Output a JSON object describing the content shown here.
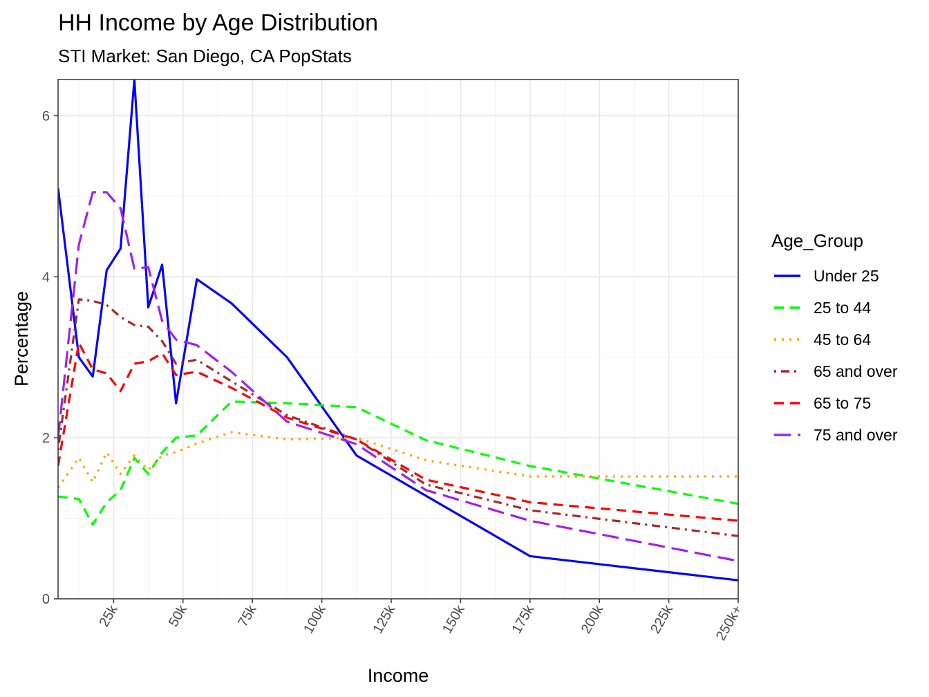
{
  "chart_data": {
    "type": "line",
    "title": "HH Income by Age Distribution",
    "subtitle": "STI Market: San Diego, CA PopStats",
    "x_label": "Income",
    "y_label": "Percentage",
    "legend_title": "Age_Group",
    "legend_position": "right",
    "grid": true,
    "x": [
      5000,
      12500,
      17500,
      22500,
      27500,
      32500,
      37500,
      42500,
      47500,
      55000,
      67500,
      87500,
      112500,
      137500,
      175000,
      250000
    ],
    "xlim": [
      5000,
      250000
    ],
    "xticks": [
      {
        "value": 25000,
        "label": "25k"
      },
      {
        "value": 50000,
        "label": "50k"
      },
      {
        "value": 75000,
        "label": "75k"
      },
      {
        "value": 100000,
        "label": "100k"
      },
      {
        "value": 125000,
        "label": "125k"
      },
      {
        "value": 150000,
        "label": "150k"
      },
      {
        "value": 175000,
        "label": "175k"
      },
      {
        "value": 200000,
        "label": "200k"
      },
      {
        "value": 225000,
        "label": "225k"
      },
      {
        "value": 250000,
        "label": "250k+"
      }
    ],
    "ylim": [
      0,
      6.45
    ],
    "yticks": [
      0,
      2,
      4,
      6
    ],
    "series": [
      {
        "name": "Under 25",
        "color": "#0000ff",
        "linetype": "solid",
        "values": [
          5.1,
          3.0,
          2.76,
          4.08,
          4.35,
          6.45,
          3.62,
          4.15,
          2.43,
          3.97,
          3.67,
          3.0,
          1.78,
          1.28,
          0.53,
          0.23
        ]
      },
      {
        "name": "25 to 44",
        "color": "#00ff00",
        "linetype": "dashed",
        "values": [
          1.27,
          1.24,
          0.92,
          1.2,
          1.35,
          1.75,
          1.55,
          1.82,
          2.0,
          2.03,
          2.45,
          2.43,
          2.38,
          1.97,
          1.65,
          1.18
        ]
      },
      {
        "name": "45 to 64",
        "color": "#ffa500",
        "linetype": "dotted",
        "values": [
          1.38,
          1.75,
          1.45,
          1.82,
          1.55,
          1.78,
          1.6,
          1.78,
          1.82,
          1.93,
          2.07,
          1.98,
          2.0,
          1.72,
          1.52,
          1.52
        ]
      },
      {
        "name": "65 and over",
        "color": "#a52a2a",
        "linetype": "dotdash",
        "values": [
          1.85,
          3.72,
          3.7,
          3.65,
          3.5,
          3.4,
          3.38,
          3.2,
          2.92,
          2.97,
          2.7,
          2.28,
          1.98,
          1.42,
          1.1,
          0.78
        ]
      },
      {
        "name": "65 to 75",
        "color": "#ff0000",
        "linetype": "dashed",
        "values": [
          1.65,
          3.18,
          2.85,
          2.8,
          2.58,
          2.92,
          2.95,
          3.05,
          2.78,
          2.82,
          2.62,
          2.25,
          1.98,
          1.48,
          1.2,
          0.97
        ]
      },
      {
        "name": "75 and over",
        "color": "#a020f0",
        "linetype": "longdash",
        "values": [
          2.0,
          4.4,
          5.05,
          5.05,
          4.85,
          4.1,
          4.12,
          3.45,
          3.22,
          3.15,
          2.82,
          2.2,
          1.92,
          1.35,
          0.97,
          0.47
        ]
      }
    ]
  }
}
